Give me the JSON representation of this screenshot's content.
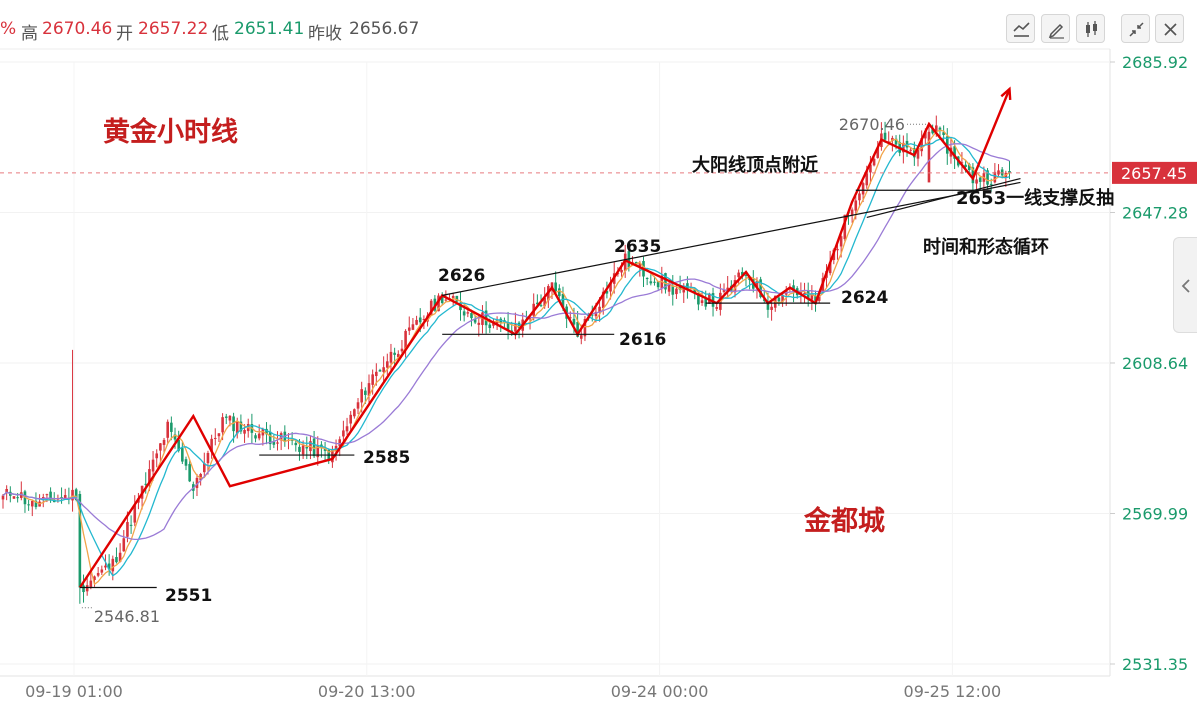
{
  "quote": {
    "pct_symbol": "%",
    "high_label": "高",
    "high": "2670.46",
    "open_label": "开",
    "open": "2657.22",
    "low_label": "低",
    "low": "2651.41",
    "prev_label": "昨收",
    "prev": "2656.67"
  },
  "toolbar": [
    "line-tool-icon",
    "pencil-icon",
    "candlestick-icon",
    "collapse-icon",
    "close-icon"
  ],
  "colors": {
    "up": "#d8323c",
    "down": "#1a9a6b",
    "ma5": "#f2a44a",
    "ma10": "#23b8cf",
    "ma20": "#9a7bd6",
    "annotation": "#e00000"
  },
  "chart_data": {
    "type": "candlestick",
    "title": "黄金小时线",
    "watermark": "金都城",
    "ylim": [
      2531.35,
      2685.92
    ],
    "y_ticks": [
      "2685.92",
      "2647.28",
      "2608.64",
      "2569.99",
      "2531.35"
    ],
    "current_price": "2657.45",
    "x_ticks": [
      "09-19 01:00",
      "09-20 13:00",
      "09-24 00:00",
      "09-25 12:00"
    ],
    "x_tick_index": [
      3,
      83,
      163,
      243
    ],
    "bar_count": 276,
    "extremes": {
      "high": "2670.46",
      "low": "2546.81"
    },
    "anchors": [
      [
        0,
        2574
      ],
      [
        3,
        2576
      ],
      [
        8,
        2572
      ],
      [
        15,
        2574
      ],
      [
        20,
        2575
      ],
      [
        21,
        2551
      ],
      [
        30,
        2557
      ],
      [
        45,
        2592
      ],
      [
        52,
        2577
      ],
      [
        60,
        2594
      ],
      [
        75,
        2589
      ],
      [
        90,
        2585
      ],
      [
        100,
        2604
      ],
      [
        120,
        2626
      ],
      [
        128,
        2621
      ],
      [
        140,
        2617
      ],
      [
        150,
        2628
      ],
      [
        157,
        2616
      ],
      [
        170,
        2635
      ],
      [
        182,
        2628
      ],
      [
        195,
        2624
      ],
      [
        203,
        2632
      ],
      [
        209,
        2624
      ],
      [
        215,
        2628
      ],
      [
        222,
        2624
      ],
      [
        232,
        2650
      ],
      [
        240,
        2666
      ],
      [
        249,
        2662
      ],
      [
        253,
        2670
      ],
      [
        265,
        2656
      ],
      [
        275,
        2657
      ]
    ],
    "annotations": [
      {
        "text": "2626"
      },
      {
        "text": "2635"
      },
      {
        "text": "2616"
      },
      {
        "text": "2624"
      },
      {
        "text": "2585"
      },
      {
        "text": "2551"
      },
      {
        "text": "2653一线支撑反抽"
      },
      {
        "text": "大阳线顶点附近"
      },
      {
        "text": "时间和形态循环"
      }
    ]
  }
}
